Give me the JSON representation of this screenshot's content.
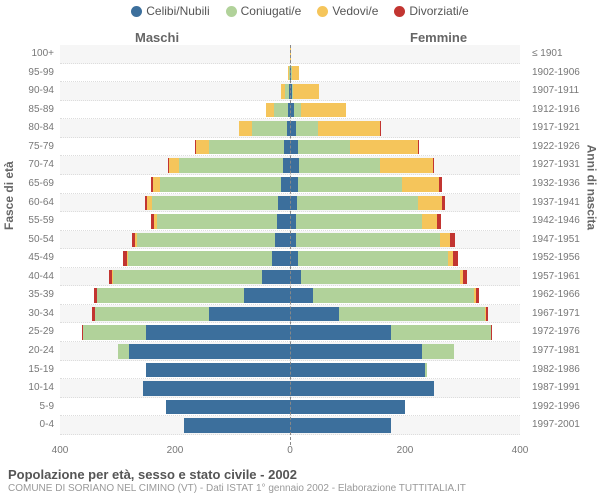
{
  "chart": {
    "type": "population-pyramid",
    "background_color": "#ffffff",
    "alt_row_color": "#f6f6f6",
    "grid_color": "#dddddd",
    "axis_dash_color": "#888888",
    "text_color": "#666666",
    "tick_color": "#777777",
    "x_max": 400,
    "x_ticks": [
      400,
      200,
      0,
      200,
      400
    ]
  },
  "legend": {
    "items": [
      {
        "key": "celibi",
        "label": "Celibi/Nubili",
        "color": "#3c6f9c"
      },
      {
        "key": "coniugati",
        "label": "Coniugati/e",
        "color": "#b1d29a"
      },
      {
        "key": "vedovi",
        "label": "Vedovi/e",
        "color": "#f5c55b"
      },
      {
        "key": "divorziati",
        "label": "Divorziati/e",
        "color": "#c23531"
      }
    ]
  },
  "headers": {
    "male": "Maschi",
    "female": "Femmine"
  },
  "axis_titles": {
    "left": "Fasce di età",
    "right": "Anni di nascita"
  },
  "caption": {
    "line1": "Popolazione per età, sesso e stato civile - 2002",
    "line2": "COMUNE DI SORIANO NEL CIMINO (VT) - Dati ISTAT 1° gennaio 2002 - Elaborazione TUTTITALIA.IT"
  },
  "age_groups": [
    {
      "age": "100+",
      "birth": "≤ 1901",
      "m": {
        "celibi": 0,
        "coniugati": 0,
        "vedovi": 0,
        "divorziati": 0
      },
      "f": {
        "celibi": 0,
        "coniugati": 0,
        "vedovi": 1,
        "divorziati": 0
      }
    },
    {
      "age": "95-99",
      "birth": "1902-1906",
      "m": {
        "celibi": 0,
        "coniugati": 2,
        "vedovi": 2,
        "divorziati": 0
      },
      "f": {
        "celibi": 2,
        "coniugati": 1,
        "vedovi": 12,
        "divorziati": 0
      }
    },
    {
      "age": "90-94",
      "birth": "1907-1911",
      "m": {
        "celibi": 1,
        "coniugati": 7,
        "vedovi": 7,
        "divorziati": 0
      },
      "f": {
        "celibi": 3,
        "coniugati": 3,
        "vedovi": 44,
        "divorziati": 0
      }
    },
    {
      "age": "85-89",
      "birth": "1912-1916",
      "m": {
        "celibi": 3,
        "coniugati": 24,
        "vedovi": 14,
        "divorziati": 0
      },
      "f": {
        "celibi": 7,
        "coniugati": 12,
        "vedovi": 78,
        "divorziati": 0
      }
    },
    {
      "age": "80-84",
      "birth": "1917-1921",
      "m": {
        "celibi": 6,
        "coniugati": 60,
        "vedovi": 22,
        "divorziati": 0
      },
      "f": {
        "celibi": 11,
        "coniugati": 38,
        "vedovi": 107,
        "divorziati": 1
      }
    },
    {
      "age": "75-79",
      "birth": "1922-1926",
      "m": {
        "celibi": 10,
        "coniugati": 130,
        "vedovi": 24,
        "divorziati": 1
      },
      "f": {
        "celibi": 14,
        "coniugati": 90,
        "vedovi": 118,
        "divorziati": 2
      }
    },
    {
      "age": "70-74",
      "birth": "1927-1931",
      "m": {
        "celibi": 13,
        "coniugati": 180,
        "vedovi": 18,
        "divorziati": 2
      },
      "f": {
        "celibi": 16,
        "coniugati": 140,
        "vedovi": 92,
        "divorziati": 2
      }
    },
    {
      "age": "65-69",
      "birth": "1932-1936",
      "m": {
        "celibi": 16,
        "coniugati": 210,
        "vedovi": 12,
        "divorziati": 3
      },
      "f": {
        "celibi": 14,
        "coniugati": 180,
        "vedovi": 66,
        "divorziati": 5
      }
    },
    {
      "age": "60-64",
      "birth": "1937-1941",
      "m": {
        "celibi": 20,
        "coniugati": 220,
        "vedovi": 8,
        "divorziati": 4
      },
      "f": {
        "celibi": 12,
        "coniugati": 210,
        "vedovi": 42,
        "divorziati": 5
      }
    },
    {
      "age": "55-59",
      "birth": "1942-1946",
      "m": {
        "celibi": 22,
        "coniugati": 210,
        "vedovi": 5,
        "divorziati": 5
      },
      "f": {
        "celibi": 10,
        "coniugati": 220,
        "vedovi": 26,
        "divorziati": 6
      }
    },
    {
      "age": "50-54",
      "birth": "1947-1951",
      "m": {
        "celibi": 26,
        "coniugati": 240,
        "vedovi": 3,
        "divorziati": 6
      },
      "f": {
        "celibi": 11,
        "coniugati": 250,
        "vedovi": 18,
        "divorziati": 8
      }
    },
    {
      "age": "45-49",
      "birth": "1952-1956",
      "m": {
        "celibi": 32,
        "coniugati": 250,
        "vedovi": 2,
        "divorziati": 7
      },
      "f": {
        "celibi": 14,
        "coniugati": 260,
        "vedovi": 10,
        "divorziati": 8
      }
    },
    {
      "age": "40-44",
      "birth": "1957-1961",
      "m": {
        "celibi": 48,
        "coniugati": 260,
        "vedovi": 1,
        "divorziati": 6
      },
      "f": {
        "celibi": 20,
        "coniugati": 275,
        "vedovi": 6,
        "divorziati": 7
      }
    },
    {
      "age": "35-39",
      "birth": "1962-1966",
      "m": {
        "celibi": 80,
        "coniugati": 255,
        "vedovi": 1,
        "divorziati": 5
      },
      "f": {
        "celibi": 40,
        "coniugati": 280,
        "vedovi": 3,
        "divorziati": 6
      }
    },
    {
      "age": "30-34",
      "birth": "1967-1971",
      "m": {
        "celibi": 140,
        "coniugati": 200,
        "vedovi": 0,
        "divorziati": 4
      },
      "f": {
        "celibi": 85,
        "coniugati": 255,
        "vedovi": 1,
        "divorziati": 4
      }
    },
    {
      "age": "25-29",
      "birth": "1972-1976",
      "m": {
        "celibi": 250,
        "coniugati": 110,
        "vedovi": 0,
        "divorziati": 2
      },
      "f": {
        "celibi": 175,
        "coniugati": 175,
        "vedovi": 0,
        "divorziati": 2
      }
    },
    {
      "age": "20-24",
      "birth": "1977-1981",
      "m": {
        "celibi": 280,
        "coniugati": 20,
        "vedovi": 0,
        "divorziati": 0
      },
      "f": {
        "celibi": 230,
        "coniugati": 55,
        "vedovi": 0,
        "divorziati": 0
      }
    },
    {
      "age": "15-19",
      "birth": "1982-1986",
      "m": {
        "celibi": 250,
        "coniugati": 1,
        "vedovi": 0,
        "divorziati": 0
      },
      "f": {
        "celibi": 235,
        "coniugati": 4,
        "vedovi": 0,
        "divorziati": 0
      }
    },
    {
      "age": "10-14",
      "birth": "1987-1991",
      "m": {
        "celibi": 255,
        "coniugati": 0,
        "vedovi": 0,
        "divorziati": 0
      },
      "f": {
        "celibi": 250,
        "coniugati": 0,
        "vedovi": 0,
        "divorziati": 0
      }
    },
    {
      "age": "5-9",
      "birth": "1992-1996",
      "m": {
        "celibi": 215,
        "coniugati": 0,
        "vedovi": 0,
        "divorziati": 0
      },
      "f": {
        "celibi": 200,
        "coniugati": 0,
        "vedovi": 0,
        "divorziati": 0
      }
    },
    {
      "age": "0-4",
      "birth": "1997-2001",
      "m": {
        "celibi": 185,
        "coniugati": 0,
        "vedovi": 0,
        "divorziati": 0
      },
      "f": {
        "celibi": 175,
        "coniugati": 0,
        "vedovi": 0,
        "divorziati": 0
      }
    }
  ]
}
